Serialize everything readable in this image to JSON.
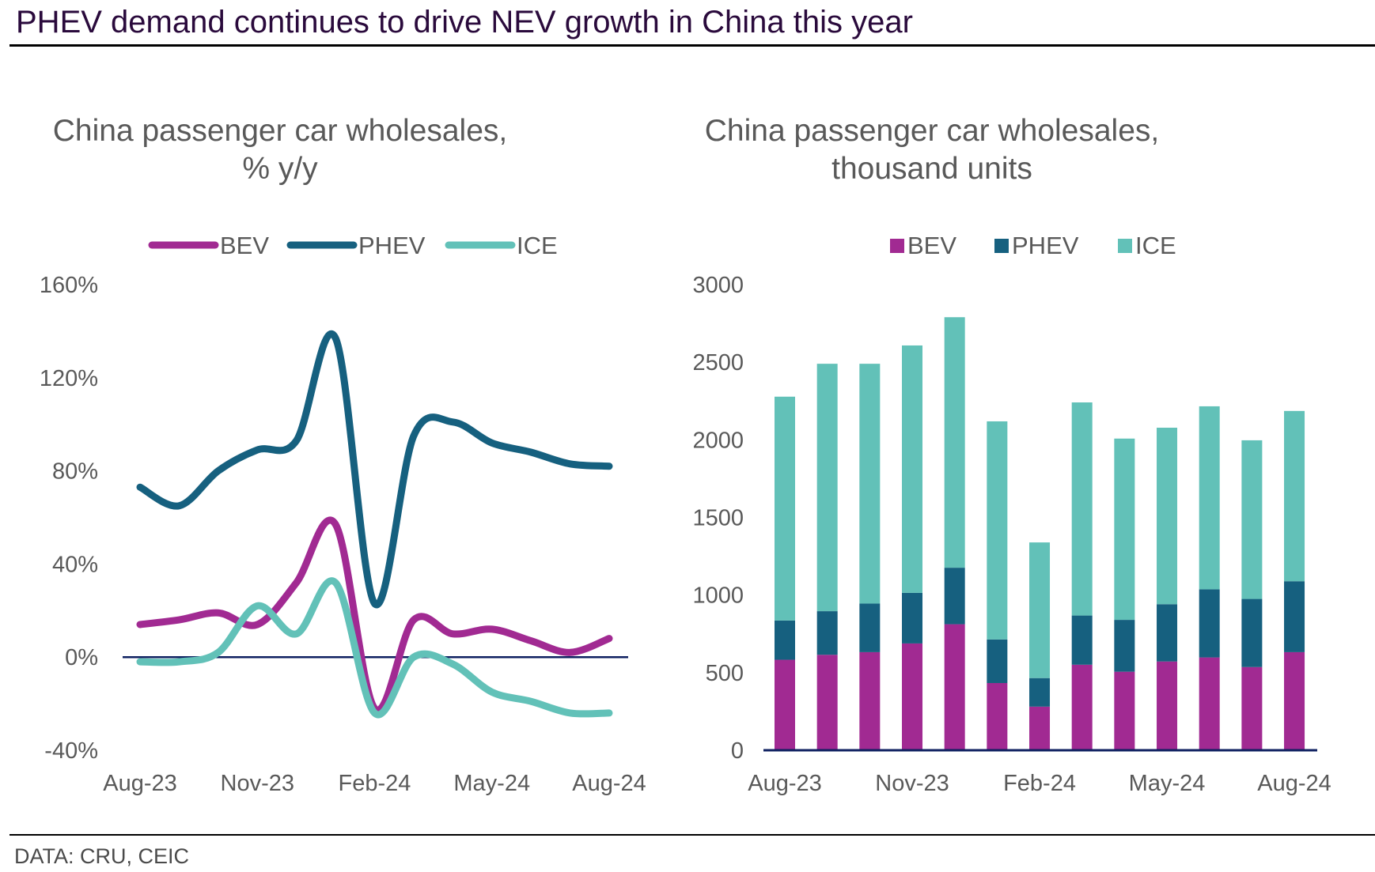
{
  "header": {
    "title": "PHEV demand continues to drive NEV growth in China this year"
  },
  "footer": {
    "source": "DATA: CRU, CEIC"
  },
  "colors": {
    "BEV": "#A12A92",
    "PHEV": "#16607F",
    "ICE": "#62C1B8",
    "axis": "#0E2060",
    "title": "#2A0A3C",
    "text": "#595959"
  },
  "chart_data": [
    {
      "type": "line",
      "title_lines": [
        "China passenger car wholesales,",
        "% y/y"
      ],
      "x": [
        "Aug-23",
        "Sep-23",
        "Oct-23",
        "Nov-23",
        "Dec-23",
        "Jan-24",
        "Feb-24",
        "Mar-24",
        "Apr-24",
        "May-24",
        "Jun-24",
        "Jul-24",
        "Aug-24"
      ],
      "x_tick_labels": [
        "Aug-23",
        "Nov-23",
        "Feb-24",
        "May-24",
        "Aug-24"
      ],
      "y_tick_labels": [
        "160%",
        "120%",
        "80%",
        "40%",
        "0%",
        "-40%"
      ],
      "y_ticks": [
        160,
        120,
        80,
        40,
        0,
        -40
      ],
      "ylim": [
        -40,
        160
      ],
      "xlabel": "",
      "ylabel": "",
      "smooth": true,
      "legend": "top",
      "grid": false,
      "series": [
        {
          "name": "BEV",
          "values": [
            14,
            16,
            19,
            14,
            32,
            57,
            -22,
            16,
            10,
            12,
            7,
            2,
            8
          ]
        },
        {
          "name": "PHEV",
          "values": [
            73,
            65,
            80,
            89,
            93,
            137,
            23,
            95,
            101,
            92,
            88,
            83,
            82
          ]
        },
        {
          "name": "ICE",
          "values": [
            -2,
            -2,
            2,
            22,
            10,
            32,
            -24,
            0,
            -3,
            -15,
            -19,
            -24,
            -24
          ]
        }
      ]
    },
    {
      "type": "bar",
      "stacked": true,
      "title_lines": [
        "China passenger car wholesales,",
        "thousand units"
      ],
      "categories": [
        "Aug-23",
        "Sep-23",
        "Oct-23",
        "Nov-23",
        "Dec-23",
        "Jan-24",
        "Feb-24",
        "Mar-24",
        "Apr-24",
        "May-24",
        "Jun-24",
        "Jul-24",
        "Aug-24"
      ],
      "x_tick_labels": [
        "Aug-23",
        "Nov-23",
        "Feb-24",
        "May-24",
        "Aug-24"
      ],
      "y_tick_labels": [
        "3000",
        "2500",
        "2000",
        "1500",
        "1000",
        "500",
        "0"
      ],
      "y_ticks": [
        3000,
        2500,
        2000,
        1500,
        1000,
        500,
        0
      ],
      "ylim": [
        0,
        3000
      ],
      "xlabel": "",
      "ylabel": "",
      "legend": "top",
      "grid": false,
      "series": [
        {
          "name": "BEV",
          "values": [
            583,
            615,
            632,
            688,
            812,
            433,
            281,
            551,
            506,
            572,
            598,
            536,
            632
          ]
        },
        {
          "name": "PHEV",
          "values": [
            253,
            281,
            313,
            326,
            364,
            281,
            184,
            317,
            334,
            369,
            439,
            439,
            457
          ]
        },
        {
          "name": "ICE",
          "values": [
            1442,
            1594,
            1545,
            1594,
            1614,
            1405,
            874,
            1373,
            1168,
            1137,
            1179,
            1022,
            1097
          ]
        }
      ]
    }
  ]
}
